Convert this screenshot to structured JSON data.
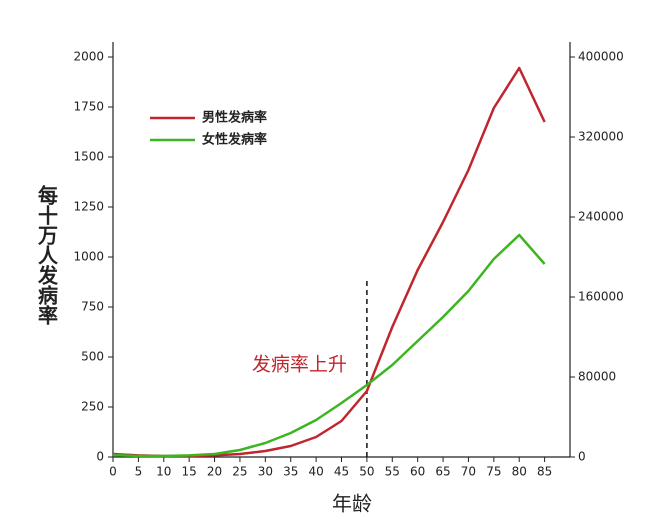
{
  "chart_data": {
    "type": "line",
    "x": [
      0,
      5,
      10,
      15,
      20,
      25,
      30,
      35,
      40,
      45,
      50,
      55,
      60,
      65,
      70,
      75,
      80,
      85
    ],
    "series": [
      {
        "name": "男性发病率",
        "color": "#c0262d",
        "values": [
          15,
          8,
          5,
          5,
          8,
          15,
          30,
          55,
          100,
          180,
          330,
          650,
          935,
          1175,
          1435,
          1745,
          1945,
          1675
        ]
      },
      {
        "name": "女性发病率",
        "color": "#3cb521",
        "values": [
          10,
          5,
          5,
          8,
          15,
          35,
          70,
          120,
          185,
          270,
          360,
          460,
          580,
          700,
          830,
          990,
          1110,
          965
        ]
      }
    ],
    "xlim": [
      0,
      90
    ],
    "xticks": [
      0,
      5,
      10,
      15,
      20,
      25,
      30,
      35,
      40,
      45,
      50,
      55,
      60,
      65,
      70,
      75,
      80,
      85
    ],
    "ylim": [
      0,
      2000
    ],
    "yticks": [
      0,
      250,
      500,
      750,
      1000,
      1250,
      1500,
      1750,
      2000
    ],
    "y2lim": [
      0,
      400000
    ],
    "y2ticks": [
      0,
      80000,
      160000,
      240000,
      320000,
      400000
    ],
    "xlabel": "年龄",
    "ylabel": "每十万人发病率",
    "annotation": {
      "text": "发病率上升",
      "x": 50,
      "y": 880
    },
    "legend": "upper-left"
  }
}
